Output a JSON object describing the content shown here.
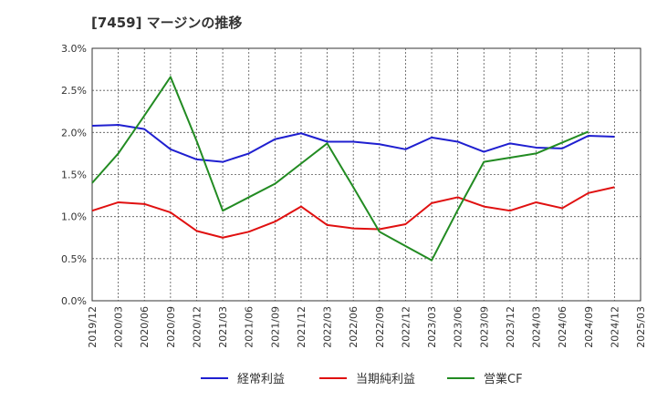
{
  "title": "[7459]  マージンの推移",
  "chart_data": {
    "type": "line",
    "x": [
      "2019/12",
      "2020/03",
      "2020/06",
      "2020/09",
      "2020/12",
      "2021/03",
      "2021/06",
      "2021/09",
      "2021/12",
      "2022/03",
      "2022/06",
      "2022/09",
      "2022/12",
      "2023/03",
      "2023/06",
      "2023/09",
      "2023/12",
      "2024/03",
      "2024/06",
      "2024/09",
      "2024/12",
      "2025/03"
    ],
    "yticks": [
      "0.0%",
      "0.5%",
      "1.0%",
      "1.5%",
      "2.0%",
      "2.5%",
      "3.0%"
    ],
    "ylim": [
      0,
      3.0
    ],
    "grid": true,
    "legend_position": "bottom",
    "series": [
      {
        "name": "経常利益",
        "color": "#1f1fd0",
        "values": [
          2.08,
          2.09,
          2.04,
          1.8,
          1.68,
          1.65,
          1.75,
          1.92,
          1.99,
          1.89,
          1.89,
          1.86,
          1.8,
          1.94,
          1.89,
          1.77,
          1.87,
          1.82,
          1.81,
          1.96,
          1.95,
          null
        ]
      },
      {
        "name": "当期純利益",
        "color": "#e01010",
        "values": [
          1.07,
          1.17,
          1.15,
          1.05,
          0.83,
          0.75,
          0.82,
          0.94,
          1.12,
          0.9,
          0.86,
          0.85,
          0.91,
          1.16,
          1.23,
          1.12,
          1.07,
          1.17,
          1.1,
          1.28,
          1.35,
          null
        ]
      },
      {
        "name": "営業CF",
        "color": "#228b22",
        "values": [
          1.4,
          1.75,
          2.2,
          2.66,
          1.9,
          1.07,
          1.23,
          1.39,
          1.63,
          1.87,
          1.35,
          0.82,
          0.65,
          0.48,
          1.08,
          1.65,
          1.7,
          1.75,
          1.88,
          2.01,
          null,
          null
        ]
      }
    ]
  }
}
